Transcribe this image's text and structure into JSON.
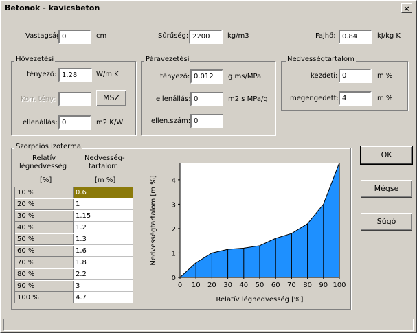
{
  "window": {
    "title": "Betonok - kavicsbeton",
    "close_glyph": "×"
  },
  "top": {
    "thickness": {
      "label": "Vastagság:",
      "value": "0",
      "unit": "cm"
    },
    "density": {
      "label": "Sűrűség:",
      "value": "2200",
      "unit": "kg/m3"
    },
    "specific_heat": {
      "label": "Fajhő:",
      "value": "0.84",
      "unit": "kJ/kg K"
    }
  },
  "heat": {
    "title": "Hővezetési",
    "factor": {
      "label": "tényező:",
      "value": "1.28",
      "unit": "W/m K"
    },
    "corr": {
      "label": "Korr. tény:",
      "value": ""
    },
    "msz_button": "MSZ",
    "resistance": {
      "label": "ellenállás:",
      "value": "0",
      "unit": "m2 K/W"
    }
  },
  "vapor": {
    "title": "Páravezetési",
    "factor": {
      "label": "tényező:",
      "value": "0.012",
      "unit": "g ms/MPa"
    },
    "resistance": {
      "label": "ellenállás:",
      "value": "0",
      "unit": "m2 s MPa/g"
    },
    "resistance_number": {
      "label": "ellen.szám:",
      "value": "0"
    }
  },
  "moisture": {
    "title": "Nedvességtartalom",
    "initial": {
      "label": "kezdeti:",
      "value": "0",
      "unit": "m %"
    },
    "allowed": {
      "label": "megengedett:",
      "value": "4",
      "unit": "m %"
    }
  },
  "sorption": {
    "title": "Szorpciós izoterma",
    "col1_header_line1": "Relatív",
    "col1_header_line2": "légnedvesség",
    "col1_unit": "[%]",
    "col2_header_line1": "Nedvesség-",
    "col2_header_line2": "tartalom",
    "col2_unit": "[m %]",
    "rows": [
      {
        "rh": "10 %",
        "mc": "0.6"
      },
      {
        "rh": "20 %",
        "mc": "1"
      },
      {
        "rh": "30 %",
        "mc": "1.15"
      },
      {
        "rh": "40 %",
        "mc": "1.2"
      },
      {
        "rh": "50 %",
        "mc": "1.3"
      },
      {
        "rh": "60 %",
        "mc": "1.6"
      },
      {
        "rh": "70 %",
        "mc": "1.8"
      },
      {
        "rh": "80 %",
        "mc": "2.2"
      },
      {
        "rh": "90 %",
        "mc": "3"
      },
      {
        "rh": "100 %",
        "mc": "4.7"
      }
    ]
  },
  "buttons": {
    "ok": "OK",
    "cancel": "Mégse",
    "help": "Súgó"
  },
  "chart_data": {
    "type": "area",
    "x": [
      0,
      10,
      20,
      30,
      40,
      50,
      60,
      70,
      80,
      90,
      100
    ],
    "y": [
      0,
      0.6,
      1,
      1.15,
      1.2,
      1.3,
      1.6,
      1.8,
      2.2,
      3,
      4.7
    ],
    "xlabel": "Relatív légnedvesség [%]",
    "ylabel": "Nedvességtartalom [m %]",
    "xlim": [
      0,
      100
    ],
    "ylim": [
      0,
      4.7
    ],
    "xticks": [
      "0",
      "10",
      "20",
      "30",
      "40",
      "50",
      "60",
      "70",
      "80",
      "90",
      "100"
    ],
    "yticks": [
      "0",
      "1",
      "2",
      "3",
      "4"
    ],
    "fill_color": "#1e90ff",
    "grid": false
  }
}
